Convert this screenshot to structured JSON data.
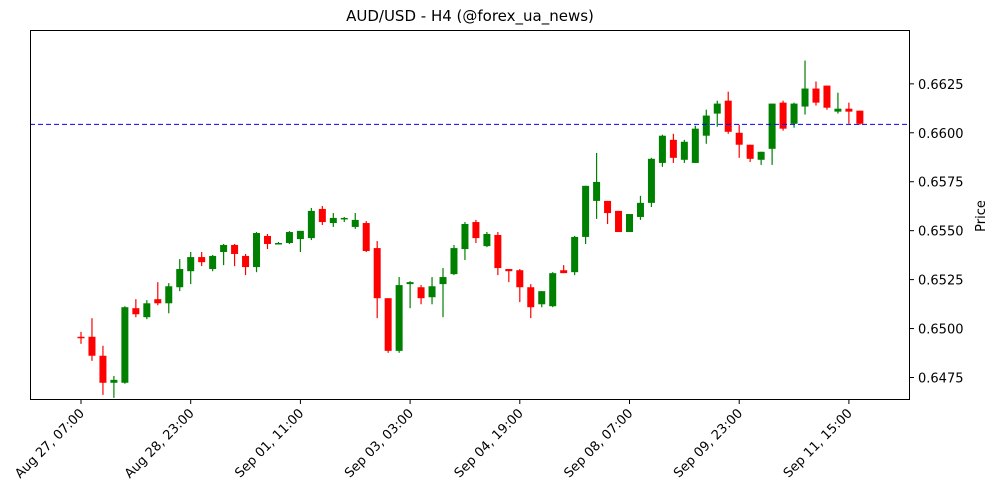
{
  "chart_data": {
    "type": "candlestick",
    "title": "AUD/USD - H4 (@forex_ua_news)",
    "xlabel": "",
    "ylabel": "Price",
    "y_axis_position": "right",
    "ylim": [
      0.64635,
      0.66525
    ],
    "yticks": [
      0.6475,
      0.65,
      0.6525,
      0.655,
      0.6575,
      0.66,
      0.6625
    ],
    "ytick_labels": [
      "0.6475",
      "0.6500",
      "0.6525",
      "0.6550",
      "0.6575",
      "0.6600",
      "0.6625"
    ],
    "xticks": [
      {
        "index": 0,
        "label": "Aug 27, 07:00"
      },
      {
        "index": 10,
        "label": "Aug 28, 23:00"
      },
      {
        "index": 20,
        "label": "Sep 01, 11:00"
      },
      {
        "index": 30,
        "label": "Sep 03, 03:00"
      },
      {
        "index": 40,
        "label": "Sep 04, 19:00"
      },
      {
        "index": 50,
        "label": "Sep 08, 07:00"
      },
      {
        "index": 60,
        "label": "Sep 09, 23:00"
      },
      {
        "index": 70,
        "label": "Sep 11, 15:00"
      }
    ],
    "grid": false,
    "reference_line": {
      "value": 0.66043,
      "style": "dashed",
      "color": "#0000ff"
    },
    "colors": {
      "up": "#008000",
      "down": "#ff0000"
    },
    "candles": [
      {
        "o": 0.64958,
        "h": 0.64983,
        "l": 0.64922,
        "c": 0.64953
      },
      {
        "o": 0.64958,
        "h": 0.65053,
        "l": 0.64835,
        "c": 0.64861
      },
      {
        "o": 0.64861,
        "h": 0.64912,
        "l": 0.64661,
        "c": 0.64723
      },
      {
        "o": 0.64723,
        "h": 0.64758,
        "l": 0.64646,
        "c": 0.64738
      },
      {
        "o": 0.64723,
        "h": 0.65114,
        "l": 0.64718,
        "c": 0.65109
      },
      {
        "o": 0.65104,
        "h": 0.6515,
        "l": 0.65058,
        "c": 0.65073
      },
      {
        "o": 0.65058,
        "h": 0.65145,
        "l": 0.65048,
        "c": 0.65129
      },
      {
        "o": 0.6515,
        "h": 0.65237,
        "l": 0.65119,
        "c": 0.65129
      },
      {
        "o": 0.65129,
        "h": 0.65232,
        "l": 0.65078,
        "c": 0.65216
      },
      {
        "o": 0.65211,
        "h": 0.65355,
        "l": 0.65191,
        "c": 0.65304
      },
      {
        "o": 0.65293,
        "h": 0.65391,
        "l": 0.65227,
        "c": 0.65365
      },
      {
        "o": 0.65365,
        "h": 0.65391,
        "l": 0.65319,
        "c": 0.65339
      },
      {
        "o": 0.65304,
        "h": 0.65376,
        "l": 0.65293,
        "c": 0.65371
      },
      {
        "o": 0.65391,
        "h": 0.65432,
        "l": 0.65324,
        "c": 0.65427
      },
      {
        "o": 0.65427,
        "h": 0.65432,
        "l": 0.65319,
        "c": 0.65381
      },
      {
        "o": 0.65371,
        "h": 0.65381,
        "l": 0.65273,
        "c": 0.65314
      },
      {
        "o": 0.65314,
        "h": 0.65493,
        "l": 0.65288,
        "c": 0.65488
      },
      {
        "o": 0.65473,
        "h": 0.65483,
        "l": 0.65406,
        "c": 0.65432
      },
      {
        "o": 0.65432,
        "h": 0.65442,
        "l": 0.65437,
        "c": 0.65437
      },
      {
        "o": 0.65437,
        "h": 0.65498,
        "l": 0.65432,
        "c": 0.65493
      },
      {
        "o": 0.65457,
        "h": 0.65488,
        "l": 0.65391,
        "c": 0.65499
      },
      {
        "o": 0.65462,
        "h": 0.65616,
        "l": 0.65452,
        "c": 0.65601
      },
      {
        "o": 0.65611,
        "h": 0.65626,
        "l": 0.65529,
        "c": 0.65544
      },
      {
        "o": 0.65539,
        "h": 0.6559,
        "l": 0.65519,
        "c": 0.65565
      },
      {
        "o": 0.6556,
        "h": 0.6557,
        "l": 0.65544,
        "c": 0.65565
      },
      {
        "o": 0.65519,
        "h": 0.6559,
        "l": 0.65509,
        "c": 0.65555
      },
      {
        "o": 0.65539,
        "h": 0.65549,
        "l": 0.65391,
        "c": 0.65396
      },
      {
        "o": 0.65411,
        "h": 0.65447,
        "l": 0.65053,
        "c": 0.65155
      },
      {
        "o": 0.65155,
        "h": 0.65155,
        "l": 0.64876,
        "c": 0.64886
      },
      {
        "o": 0.64886,
        "h": 0.65263,
        "l": 0.64876,
        "c": 0.65222
      },
      {
        "o": 0.65227,
        "h": 0.65242,
        "l": 0.65104,
        "c": 0.65237
      },
      {
        "o": 0.65211,
        "h": 0.65222,
        "l": 0.65124,
        "c": 0.65155
      },
      {
        "o": 0.6516,
        "h": 0.65263,
        "l": 0.65124,
        "c": 0.65216
      },
      {
        "o": 0.65227,
        "h": 0.65309,
        "l": 0.65058,
        "c": 0.65263
      },
      {
        "o": 0.65278,
        "h": 0.65427,
        "l": 0.65273,
        "c": 0.65411
      },
      {
        "o": 0.65406,
        "h": 0.65544,
        "l": 0.6535,
        "c": 0.65534
      },
      {
        "o": 0.65544,
        "h": 0.65555,
        "l": 0.65437,
        "c": 0.65462
      },
      {
        "o": 0.65421,
        "h": 0.65493,
        "l": 0.65416,
        "c": 0.65483
      },
      {
        "o": 0.65478,
        "h": 0.65493,
        "l": 0.65273,
        "c": 0.65309
      },
      {
        "o": 0.65304,
        "h": 0.65304,
        "l": 0.65237,
        "c": 0.65293
      },
      {
        "o": 0.65298,
        "h": 0.65304,
        "l": 0.65135,
        "c": 0.65211
      },
      {
        "o": 0.65211,
        "h": 0.65227,
        "l": 0.65053,
        "c": 0.65109
      },
      {
        "o": 0.65124,
        "h": 0.65191,
        "l": 0.65109,
        "c": 0.65191
      },
      {
        "o": 0.65114,
        "h": 0.65288,
        "l": 0.65109,
        "c": 0.65283
      },
      {
        "o": 0.65298,
        "h": 0.65324,
        "l": 0.65283,
        "c": 0.65283
      },
      {
        "o": 0.65288,
        "h": 0.65473,
        "l": 0.65273,
        "c": 0.65468
      },
      {
        "o": 0.65468,
        "h": 0.65729,
        "l": 0.65432,
        "c": 0.65729
      },
      {
        "o": 0.65652,
        "h": 0.65897,
        "l": 0.6556,
        "c": 0.65749
      },
      {
        "o": 0.65652,
        "h": 0.65652,
        "l": 0.65534,
        "c": 0.6559
      },
      {
        "o": 0.65601,
        "h": 0.65601,
        "l": 0.65493,
        "c": 0.65493
      },
      {
        "o": 0.65493,
        "h": 0.65585,
        "l": 0.65493,
        "c": 0.65585
      },
      {
        "o": 0.6557,
        "h": 0.65678,
        "l": 0.65555,
        "c": 0.65642
      },
      {
        "o": 0.65642,
        "h": 0.65872,
        "l": 0.65621,
        "c": 0.65867
      },
      {
        "o": 0.65846,
        "h": 0.6599,
        "l": 0.65826,
        "c": 0.65985
      },
      {
        "o": 0.65964,
        "h": 0.65995,
        "l": 0.65846,
        "c": 0.65872
      },
      {
        "o": 0.65862,
        "h": 0.65964,
        "l": 0.65846,
        "c": 0.65954
      },
      {
        "o": 0.65846,
        "h": 0.66036,
        "l": 0.65846,
        "c": 0.66021
      },
      {
        "o": 0.65985,
        "h": 0.66118,
        "l": 0.65944,
        "c": 0.66088
      },
      {
        "o": 0.66098,
        "h": 0.66164,
        "l": 0.66031,
        "c": 0.66149
      },
      {
        "o": 0.66164,
        "h": 0.6621,
        "l": 0.65995,
        "c": 0.66005
      },
      {
        "o": 0.66,
        "h": 0.66041,
        "l": 0.65872,
        "c": 0.65939
      },
      {
        "o": 0.65939,
        "h": 0.65939,
        "l": 0.65851,
        "c": 0.65867
      },
      {
        "o": 0.65862,
        "h": 0.65903,
        "l": 0.65836,
        "c": 0.65903
      },
      {
        "o": 0.65918,
        "h": 0.66149,
        "l": 0.65836,
        "c": 0.66149
      },
      {
        "o": 0.66154,
        "h": 0.66164,
        "l": 0.66011,
        "c": 0.66021
      },
      {
        "o": 0.66046,
        "h": 0.66154,
        "l": 0.66026,
        "c": 0.66149
      },
      {
        "o": 0.66134,
        "h": 0.66369,
        "l": 0.66093,
        "c": 0.66226
      },
      {
        "o": 0.66226,
        "h": 0.66262,
        "l": 0.66139,
        "c": 0.66154
      },
      {
        "o": 0.66241,
        "h": 0.66241,
        "l": 0.66118,
        "c": 0.66128
      },
      {
        "o": 0.66108,
        "h": 0.66205,
        "l": 0.66098,
        "c": 0.66123
      },
      {
        "o": 0.66123,
        "h": 0.66154,
        "l": 0.66046,
        "c": 0.66108
      },
      {
        "o": 0.66113,
        "h": 0.66113,
        "l": 0.66041,
        "c": 0.66046
      }
    ]
  }
}
